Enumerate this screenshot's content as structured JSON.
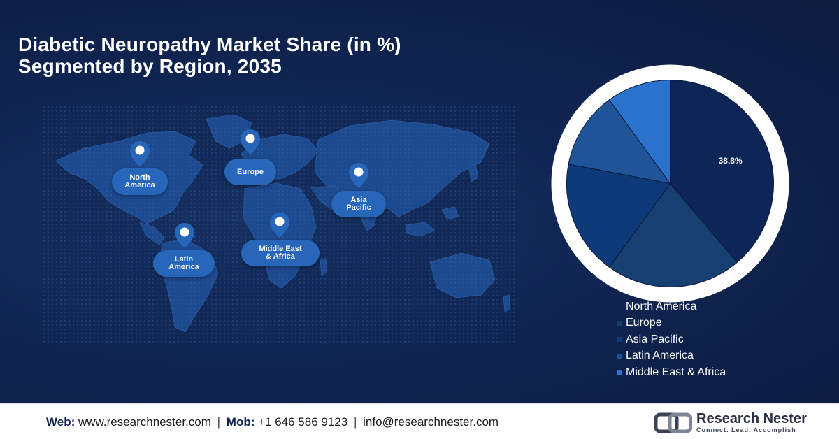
{
  "header": {
    "title_line1": "Diabetic Neuropathy Market Share (in %)",
    "title_line2": "Segmented by Region, 2035"
  },
  "map": {
    "regions": [
      {
        "id": "north-america",
        "label_line1": "North",
        "label_line2": "America"
      },
      {
        "id": "europe",
        "label_line1": "Europe",
        "label_line2": ""
      },
      {
        "id": "asia-pacific",
        "label_line1": "Asia",
        "label_line2": "Pacific"
      },
      {
        "id": "latin-america",
        "label_line1": "Latin",
        "label_line2": "America"
      },
      {
        "id": "middle-east-africa",
        "label_line1": "Middle East",
        "label_line2": "& Africa"
      }
    ]
  },
  "chart_data": {
    "type": "pie",
    "title": "Diabetic Neuropathy Market Share (in %) Segmented by Region, 2035",
    "categories": [
      "North America",
      "Europe",
      "Asia Pacific",
      "Latin America",
      "Middle East & Africa"
    ],
    "values": [
      38.8,
      21.2,
      18.0,
      12.0,
      10.0
    ],
    "data_labels": [
      "38.8%",
      "",
      "",
      "",
      ""
    ],
    "colors": [
      "#0d2557",
      "#173f70",
      "#0f3a7a",
      "#1f5598",
      "#2a72cc"
    ],
    "legend_position": "bottom-right"
  },
  "footer": {
    "web_label": "Web:",
    "web_value": "www.researchnester.com",
    "mob_label": "Mob:",
    "mob_value": "+1 646 586 9123",
    "email_value": "info@researchnester.com",
    "separator": "|",
    "brand_name": "Research Nester",
    "brand_tagline": "Connect. Lead. Accomplish"
  }
}
